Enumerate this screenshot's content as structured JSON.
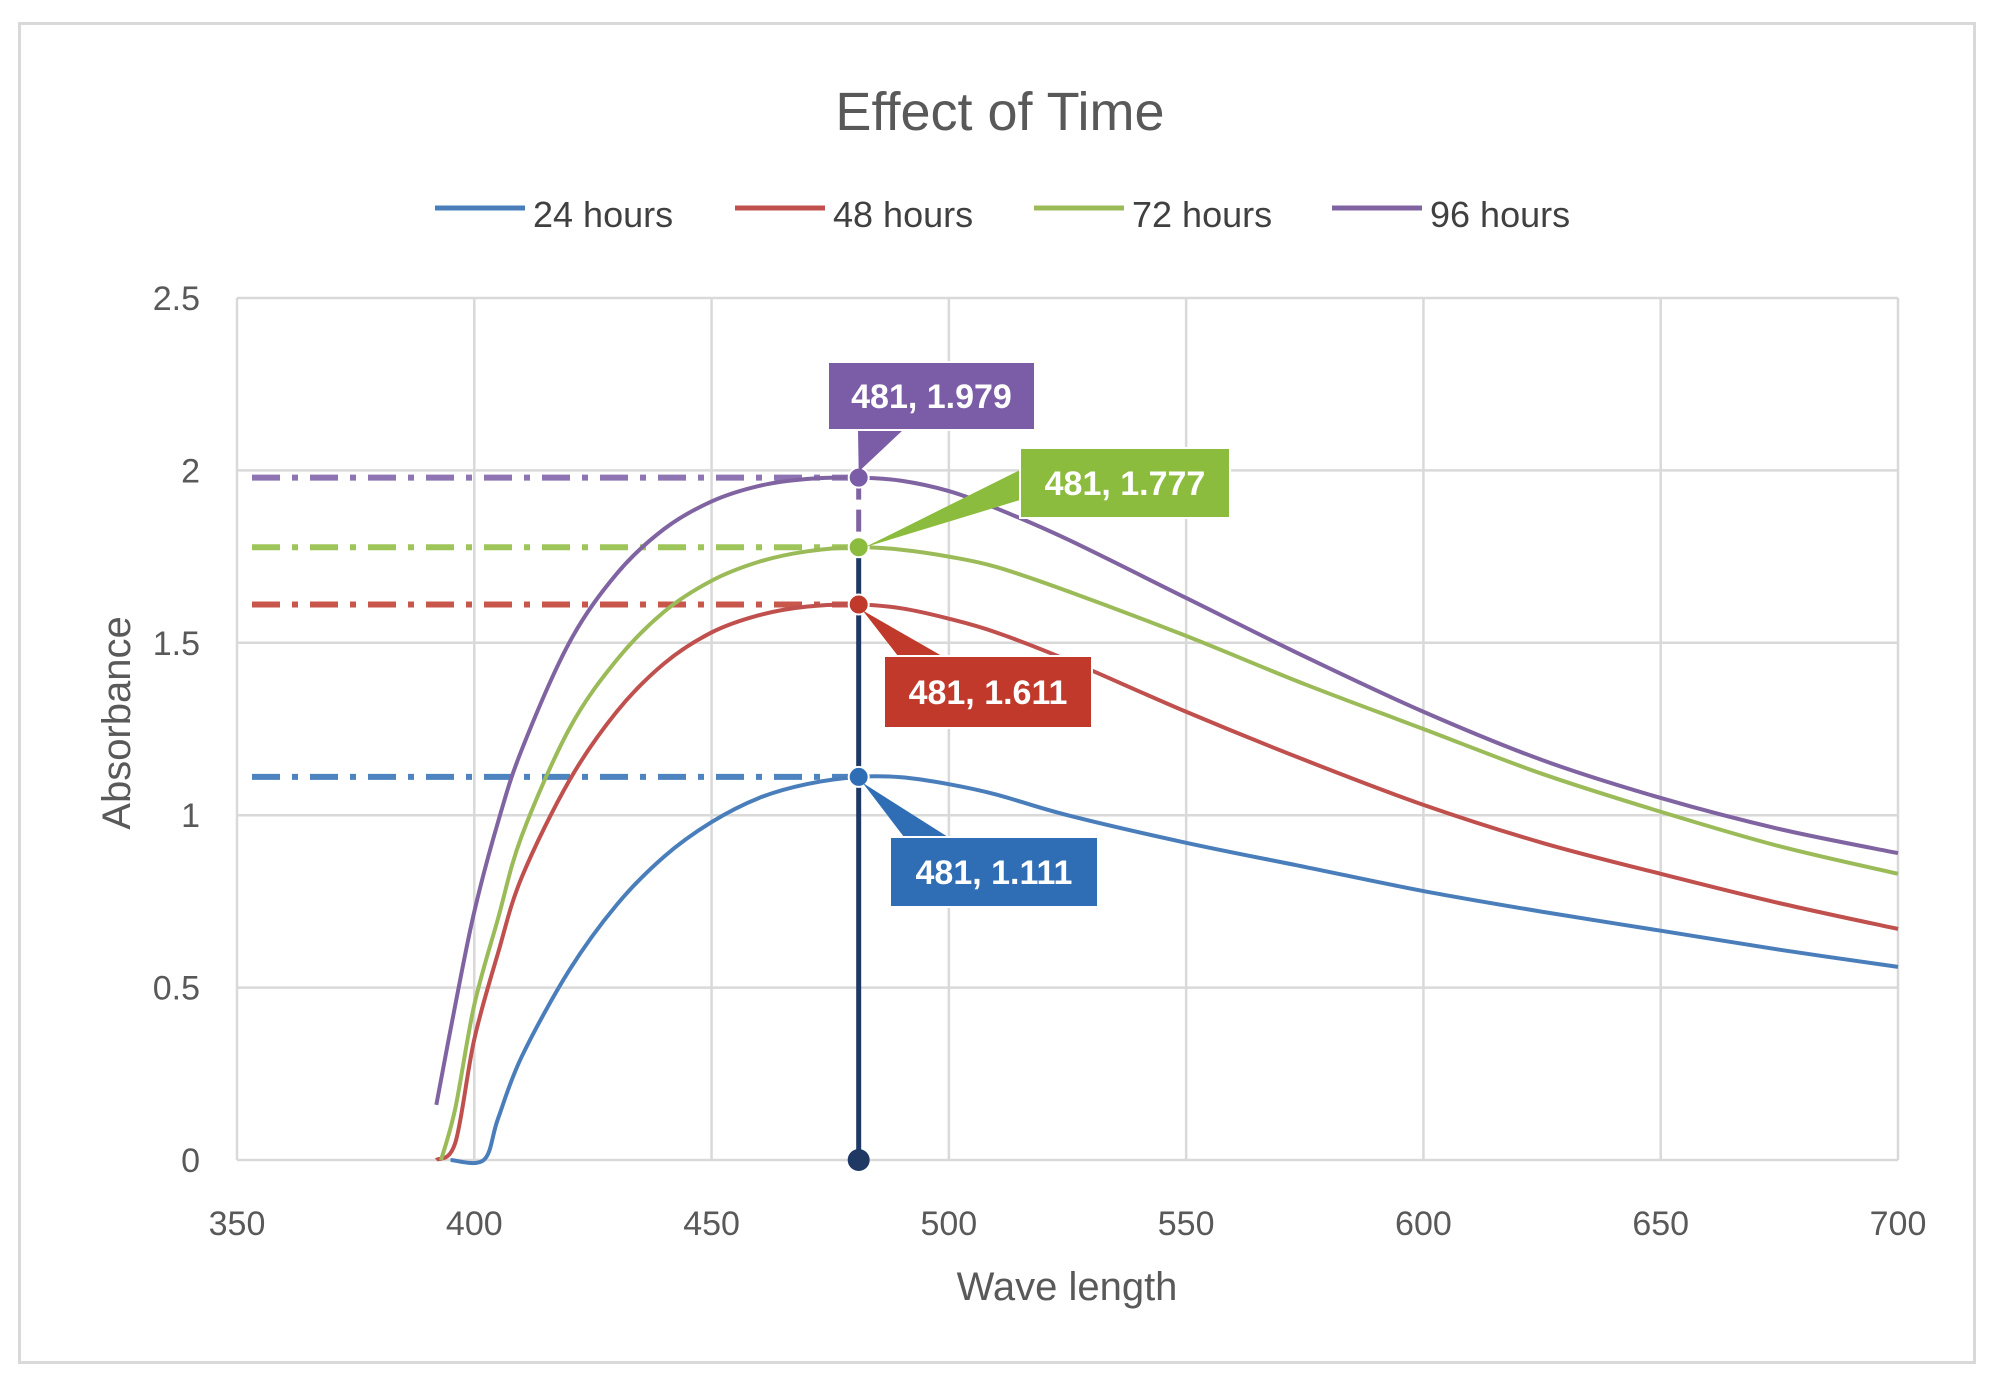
{
  "chart_data": {
    "type": "line",
    "title": "Effect of Time",
    "xlabel": "Wave length",
    "ylabel": "Absorbance",
    "xlim": [
      350,
      700
    ],
    "ylim": [
      0,
      2.5
    ],
    "x_ticks": [
      "350",
      "400",
      "450",
      "500",
      "550",
      "600",
      "650",
      "700"
    ],
    "y_ticks": [
      "0",
      "0.5",
      "1",
      "1.5",
      "2",
      "2.5"
    ],
    "grid": true,
    "legend_position": "top",
    "series": [
      {
        "name": "24 hours",
        "color": "#4a7ebb",
        "points": [
          [
            395,
            0
          ],
          [
            402,
            0
          ],
          [
            405,
            0.12
          ],
          [
            410,
            0.3
          ],
          [
            420,
            0.55
          ],
          [
            430,
            0.74
          ],
          [
            440,
            0.88
          ],
          [
            450,
            0.98
          ],
          [
            460,
            1.05
          ],
          [
            470,
            1.09
          ],
          [
            481,
            1.111
          ],
          [
            490,
            1.11
          ],
          [
            500,
            1.09
          ],
          [
            510,
            1.06
          ],
          [
            525,
            1.0
          ],
          [
            550,
            0.92
          ],
          [
            575,
            0.85
          ],
          [
            600,
            0.78
          ],
          [
            625,
            0.72
          ],
          [
            650,
            0.665
          ],
          [
            675,
            0.61
          ],
          [
            700,
            0.56
          ]
        ]
      },
      {
        "name": "48 hours",
        "color": "#c0504d",
        "points": [
          [
            392,
            0
          ],
          [
            396,
            0.05
          ],
          [
            400,
            0.35
          ],
          [
            405,
            0.6
          ],
          [
            410,
            0.82
          ],
          [
            420,
            1.1
          ],
          [
            430,
            1.3
          ],
          [
            440,
            1.44
          ],
          [
            450,
            1.53
          ],
          [
            460,
            1.58
          ],
          [
            470,
            1.605
          ],
          [
            481,
            1.611
          ],
          [
            490,
            1.6
          ],
          [
            500,
            1.57
          ],
          [
            510,
            1.53
          ],
          [
            525,
            1.45
          ],
          [
            550,
            1.3
          ],
          [
            575,
            1.16
          ],
          [
            600,
            1.03
          ],
          [
            625,
            0.92
          ],
          [
            650,
            0.83
          ],
          [
            675,
            0.745
          ],
          [
            700,
            0.67
          ]
        ]
      },
      {
        "name": "72 hours",
        "color": "#9bbb59",
        "points": [
          [
            393,
            0
          ],
          [
            396,
            0.15
          ],
          [
            400,
            0.45
          ],
          [
            405,
            0.7
          ],
          [
            410,
            0.94
          ],
          [
            420,
            1.25
          ],
          [
            430,
            1.45
          ],
          [
            440,
            1.59
          ],
          [
            450,
            1.68
          ],
          [
            460,
            1.735
          ],
          [
            470,
            1.765
          ],
          [
            481,
            1.777
          ],
          [
            490,
            1.77
          ],
          [
            500,
            1.75
          ],
          [
            510,
            1.72
          ],
          [
            525,
            1.65
          ],
          [
            550,
            1.52
          ],
          [
            575,
            1.38
          ],
          [
            600,
            1.25
          ],
          [
            625,
            1.12
          ],
          [
            650,
            1.01
          ],
          [
            675,
            0.91
          ],
          [
            700,
            0.83
          ]
        ]
      },
      {
        "name": "96 hours",
        "color": "#8064a2",
        "points": [
          [
            392,
            0.16
          ],
          [
            396,
            0.45
          ],
          [
            400,
            0.72
          ],
          [
            405,
            0.98
          ],
          [
            410,
            1.19
          ],
          [
            420,
            1.5
          ],
          [
            430,
            1.7
          ],
          [
            440,
            1.83
          ],
          [
            450,
            1.91
          ],
          [
            460,
            1.955
          ],
          [
            470,
            1.975
          ],
          [
            481,
            1.979
          ],
          [
            490,
            1.97
          ],
          [
            500,
            1.94
          ],
          [
            510,
            1.89
          ],
          [
            525,
            1.8
          ],
          [
            550,
            1.63
          ],
          [
            575,
            1.46
          ],
          [
            600,
            1.3
          ],
          [
            625,
            1.16
          ],
          [
            650,
            1.05
          ],
          [
            675,
            0.96
          ],
          [
            700,
            0.89
          ]
        ]
      }
    ],
    "reference_x": 481,
    "annotations": [
      {
        "label": "481, 1.979",
        "x": 481,
        "y": 1.979,
        "color": "#7b5ca6"
      },
      {
        "label": "481, 1.777",
        "x": 481,
        "y": 1.777,
        "color": "#8cbc3d"
      },
      {
        "label": "481, 1.611",
        "x": 481,
        "y": 1.611,
        "color": "#c0392b"
      },
      {
        "label": "481, 1.111",
        "x": 481,
        "y": 1.111,
        "color": "#2f6eb5"
      }
    ]
  }
}
